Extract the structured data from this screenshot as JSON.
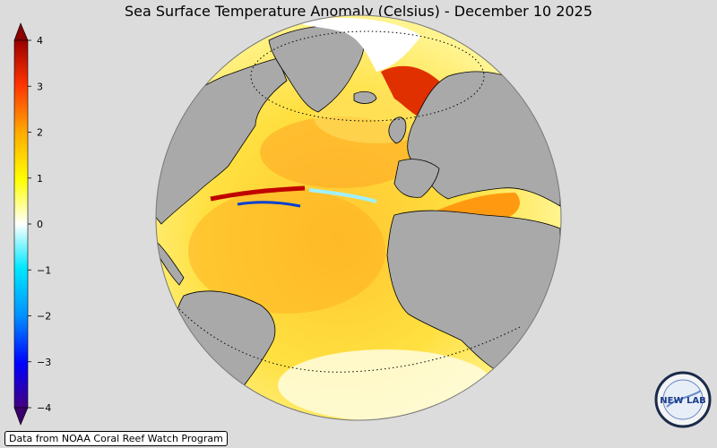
{
  "title": "Sea Surface Temperature Anomaly (Celsius) - December 10 2025",
  "colorbar": {
    "min": -4,
    "max": 4,
    "ticks": [
      "4",
      "3",
      "2",
      "1",
      "0",
      "−1",
      "−2",
      "−3",
      "−4"
    ],
    "stops": [
      "#440080",
      "#0000ff",
      "#0090ff",
      "#00e8ff",
      "#ffffff",
      "#ffff00",
      "#ffaa00",
      "#ff3300",
      "#990000"
    ]
  },
  "credit": "Data from NOAA Coral Reef Watch Program",
  "logo": {
    "text": "NEW LAB",
    "ring_text": "NEWLAB"
  },
  "colors": {
    "land": "#a9a9a9",
    "ice": "#ffffff",
    "background": "#dcdcdc"
  }
}
